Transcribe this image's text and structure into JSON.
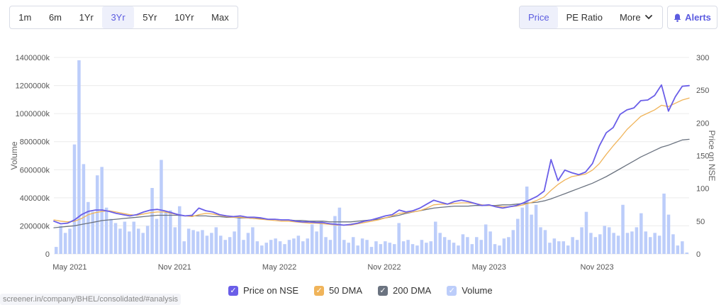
{
  "range_selector": {
    "options": [
      "1m",
      "6m",
      "1Yr",
      "3Yr",
      "5Yr",
      "10Yr",
      "Max"
    ],
    "active": "3Yr"
  },
  "metric_selector": {
    "price_label": "Price",
    "pe_label": "PE Ratio",
    "more_label": "More",
    "active": "Price"
  },
  "alerts": {
    "label": "Alerts"
  },
  "colors": {
    "price": "#6a5ee8",
    "dma50": "#f0b45a",
    "dma200": "#6b7380",
    "volume": "#bccdfa",
    "grid": "#ececec"
  },
  "url_hint": "screener.in/company/BHEL/consolidated/#analysis",
  "chart_data": {
    "type": "line",
    "title": "",
    "x_tick_labels": [
      "May 2021",
      "Nov 2021",
      "May 2022",
      "Nov 2022",
      "May 2023",
      "Nov 2023"
    ],
    "left_axis": {
      "label": "Volume",
      "ylim": [
        0,
        1400000
      ],
      "ticks": [
        "0",
        "200000k",
        "400000k",
        "600000k",
        "800000k",
        "1000000k",
        "1200000k",
        "1400000k"
      ]
    },
    "right_axis": {
      "label": "Price on NSE",
      "ylim": [
        0,
        300
      ],
      "ticks": [
        "0",
        "50",
        "100",
        "150",
        "200",
        "250",
        "300"
      ]
    },
    "legend": [
      "Price on NSE",
      "50 DMA",
      "200 DMA",
      "Volume"
    ],
    "legend_position": "bottom",
    "grid": true,
    "price_on_nse": [
      50,
      46,
      47,
      52,
      60,
      65,
      67,
      67,
      65,
      62,
      60,
      58,
      60,
      64,
      67,
      68,
      66,
      63,
      60,
      58,
      59,
      70,
      66,
      64,
      60,
      58,
      57,
      58,
      56,
      56,
      55,
      53,
      53,
      52,
      52,
      50,
      49,
      49,
      48,
      48,
      46,
      45,
      44,
      45,
      47,
      50,
      52,
      55,
      58,
      60,
      67,
      64,
      66,
      70,
      76,
      82,
      79,
      76,
      80,
      82,
      80,
      77,
      74,
      75,
      72,
      70,
      72,
      74,
      78,
      83,
      88,
      96,
      144,
      112,
      128,
      124,
      121,
      125,
      138,
      165,
      185,
      193,
      213,
      220,
      223,
      234,
      235,
      242,
      258,
      218,
      240,
      256,
      257
    ],
    "dma_50": [
      52,
      50,
      49,
      50,
      54,
      60,
      63,
      65,
      66,
      64,
      62,
      60,
      59,
      61,
      63,
      64,
      64,
      62,
      60,
      58,
      57,
      60,
      62,
      61,
      59,
      57,
      56,
      56,
      55,
      54,
      53,
      52,
      51,
      50,
      50,
      49,
      48,
      47,
      47,
      46,
      45,
      44,
      44,
      44,
      46,
      48,
      50,
      52,
      55,
      58,
      62,
      63,
      64,
      66,
      70,
      75,
      76,
      76,
      77,
      78,
      78,
      77,
      75,
      74,
      73,
      72,
      72,
      73,
      75,
      78,
      82,
      87,
      97,
      106,
      113,
      118,
      120,
      122,
      128,
      138,
      152,
      165,
      177,
      190,
      200,
      210,
      215,
      220,
      227,
      225,
      230,
      235,
      238
    ],
    "dma_200": [
      40,
      41,
      42,
      43,
      45,
      47,
      49,
      51,
      52,
      53,
      54,
      55,
      56,
      57,
      58,
      59,
      59,
      59,
      59,
      58,
      58,
      58,
      58,
      57,
      57,
      56,
      56,
      55,
      55,
      54,
      54,
      53,
      53,
      52,
      52,
      51,
      51,
      50,
      50,
      50,
      49,
      49,
      49,
      49,
      50,
      51,
      52,
      53,
      55,
      57,
      59,
      62,
      64,
      66,
      68,
      70,
      71,
      72,
      73,
      73,
      73,
      74,
      74,
      74,
      74,
      75,
      75,
      76,
      77,
      78,
      79,
      81,
      84,
      88,
      92,
      96,
      100,
      104,
      108,
      113,
      118,
      124,
      130,
      136,
      142,
      148,
      153,
      158,
      163,
      166,
      170,
      174,
      175
    ],
    "volume_k": [
      50000,
      200000,
      150000,
      180000,
      780000,
      1380000,
      640000,
      370000,
      300000,
      560000,
      620000,
      330000,
      250000,
      220000,
      180000,
      230000,
      160000,
      230000,
      180000,
      150000,
      200000,
      470000,
      250000,
      670000,
      300000,
      310000,
      190000,
      340000,
      90000,
      180000,
      170000,
      160000,
      170000,
      130000,
      150000,
      190000,
      130000,
      100000,
      120000,
      160000,
      270000,
      100000,
      150000,
      190000,
      90000,
      60000,
      80000,
      100000,
      110000,
      90000,
      70000,
      100000,
      110000,
      130000,
      90000,
      110000,
      210000,
      160000,
      230000,
      120000,
      100000,
      270000,
      330000,
      100000,
      80000,
      120000,
      60000,
      110000,
      100000,
      50000,
      90000,
      70000,
      90000,
      80000,
      70000,
      220000,
      90000,
      100000,
      70000,
      60000,
      100000,
      80000,
      90000,
      230000,
      150000,
      120000,
      100000,
      80000,
      60000,
      140000,
      120000,
      70000,
      120000,
      100000,
      210000,
      160000,
      70000,
      60000,
      110000,
      120000,
      170000,
      250000,
      330000,
      480000,
      280000,
      350000,
      190000,
      170000,
      80000,
      110000,
      90000,
      90000,
      60000,
      120000,
      100000,
      190000,
      300000,
      150000,
      120000,
      140000,
      200000,
      190000,
      150000,
      130000,
      350000,
      150000,
      160000,
      190000,
      290000,
      160000,
      120000,
      150000,
      130000,
      430000,
      280000,
      140000,
      60000,
      90000,
      10000
    ]
  }
}
